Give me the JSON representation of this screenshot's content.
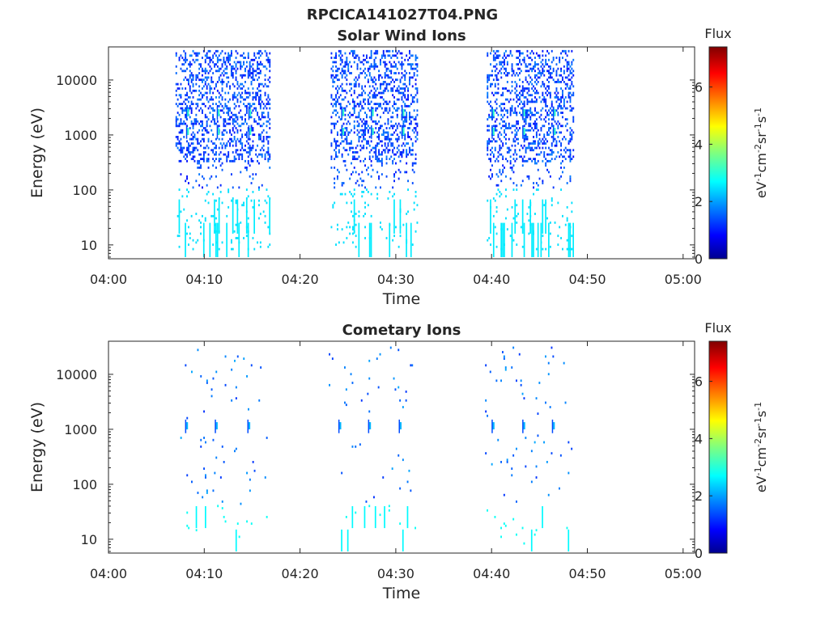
{
  "figure": {
    "title": "RPCICA141027T04.PNG"
  },
  "colorbar": {
    "title": "Flux",
    "label": "eV-1cm-2sr-1s-1",
    "ticks": [
      "0",
      "2",
      "4",
      "6"
    ],
    "range": [
      0,
      7.4
    ],
    "colormap": "jet"
  },
  "axes": {
    "xlabel": "Time",
    "ylabel": "Energy (eV)",
    "xticks": [
      "04:00",
      "04:10",
      "04:20",
      "04:30",
      "04:40",
      "04:50",
      "05:00"
    ],
    "xlim_minutes": [
      0,
      61.2
    ],
    "yticks": [
      "10",
      "100",
      "1000",
      "10000"
    ],
    "ylim": [
      5.6,
      40000
    ],
    "yscale": "log"
  },
  "chart_data": [
    {
      "type": "heatmap",
      "title": "Solar Wind Ions",
      "xlabel": "Time",
      "ylabel": "Energy (eV)",
      "x_unit": "minutes after 04:00",
      "blocks": [
        {
          "t": [
            7,
            16.8
          ],
          "peaks": [
            8.3,
            11.5,
            14.8
          ]
        },
        {
          "t": [
            23.2,
            32.2
          ],
          "peaks": [
            24.5,
            27.6,
            30.8
          ]
        },
        {
          "t": [
            39.5,
            48.5
          ],
          "peaks": [
            40.2,
            43.4,
            46.6
          ]
        }
      ]
    },
    {
      "type": "heatmap",
      "title": "Cometary Ions",
      "xlabel": "Time",
      "ylabel": "Energy (eV)",
      "x_unit": "minutes after 04:00",
      "blocks": [
        {
          "t": [
            7.5,
            16.5
          ],
          "peaks": [
            8.2,
            11.3,
            14.7
          ]
        },
        {
          "t": [
            23.0,
            32.0
          ],
          "peaks": [
            24.2,
            27.3,
            30.5
          ]
        },
        {
          "t": [
            39.0,
            48.5
          ],
          "peaks": [
            40.2,
            43.4,
            46.5
          ]
        }
      ]
    }
  ]
}
